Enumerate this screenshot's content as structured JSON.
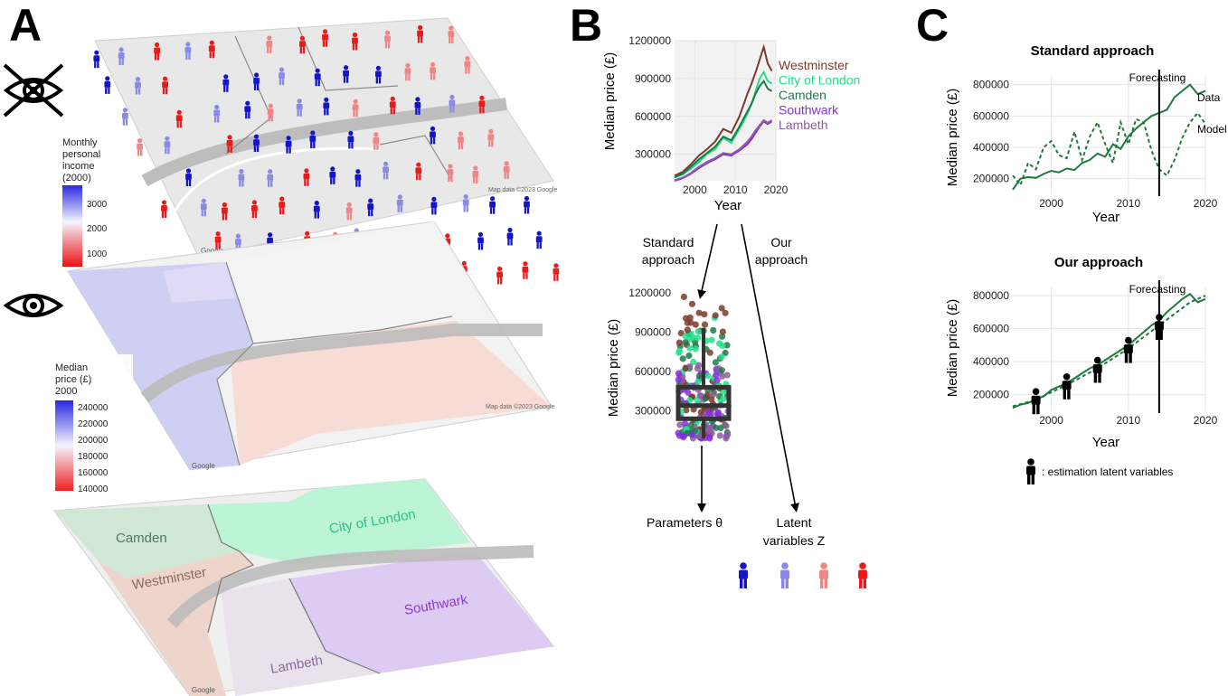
{
  "panels": {
    "a": "A",
    "b": "B",
    "c": "C"
  },
  "colors": {
    "westminster": "#7a3b2e",
    "city_of_london": "#22e08a",
    "camden": "#1f7a46",
    "southwark": "#8a2be2",
    "lambeth": "#8c5e9e",
    "low_income": "#e81a1a",
    "mid_low_income": "#f08585",
    "mid_high_income": "#8a8ae6",
    "high_income": "#1414c8",
    "model_green": "#1e7a3c"
  },
  "panel_a": {
    "legend1": {
      "title": [
        "Monthly",
        "personal",
        "income",
        "(2000)"
      ],
      "ticks": [
        "3000",
        "2000",
        "1000"
      ]
    },
    "legend2": {
      "title": [
        "Median",
        "price (£)",
        "2000"
      ],
      "ticks": [
        "240000",
        "220000",
        "200000",
        "180000",
        "160000",
        "140000"
      ]
    },
    "regions": [
      "Camden",
      "City of London",
      "Westminster",
      "Southwark",
      "Lambeth"
    ],
    "map_credit": "Map data ©2023 Google",
    "google_logo": "Google"
  },
  "panel_b": {
    "x_label": "Year",
    "y_label": "Median price (£)",
    "standard_label": [
      "Standard",
      "approach"
    ],
    "our_label": [
      "Our",
      "approach"
    ],
    "parameters_label": "Parameters θ",
    "latent_label": [
      "Latent",
      "variables Z"
    ]
  },
  "panel_c": {
    "standard_title": "Standard approach",
    "our_title": "Our approach",
    "forecasting_label": "Forecasting",
    "data_label": "Data",
    "model_label": "Model",
    "x_label": "Year",
    "y_label": "Median price (£)",
    "legend_text": ": estimation latent variables"
  },
  "chart_data": [
    {
      "id": "b-line",
      "type": "line",
      "title": "",
      "xlabel": "Year",
      "ylabel": "Median price (£)",
      "xlim": [
        1995,
        2020
      ],
      "ylim": [
        90000,
        1200000
      ],
      "xticks": [
        2000,
        2010,
        2020
      ],
      "yticks": [
        300000,
        600000,
        900000,
        1200000
      ],
      "x": [
        1995,
        1997,
        1999,
        2001,
        2003,
        2005,
        2007,
        2009,
        2011,
        2013,
        2014,
        2015,
        2016,
        2017,
        2018,
        2019
      ],
      "series": [
        {
          "name": "Westminster",
          "color": "#7a3b2e",
          "values": [
            130000,
            160000,
            220000,
            290000,
            340000,
            400000,
            500000,
            470000,
            600000,
            780000,
            860000,
            950000,
            1050000,
            1150000,
            1020000,
            960000
          ]
        },
        {
          "name": "City of London",
          "color": "#22e08a",
          "values": [
            115000,
            140000,
            185000,
            240000,
            300000,
            340000,
            430000,
            390000,
            500000,
            620000,
            700000,
            800000,
            900000,
            950000,
            880000,
            860000
          ]
        },
        {
          "name": "Camden",
          "color": "#1f7a46",
          "values": [
            120000,
            145000,
            200000,
            260000,
            310000,
            360000,
            440000,
            410000,
            520000,
            640000,
            700000,
            780000,
            840000,
            880000,
            820000,
            800000
          ]
        },
        {
          "name": "Southwark",
          "color": "#8a2be2",
          "values": [
            90000,
            110000,
            145000,
            190000,
            230000,
            260000,
            300000,
            290000,
            330000,
            380000,
            420000,
            470000,
            520000,
            560000,
            540000,
            560000
          ]
        },
        {
          "name": "Lambeth",
          "color": "#8c5e9e",
          "values": [
            95000,
            115000,
            150000,
            200000,
            240000,
            270000,
            310000,
            300000,
            340000,
            400000,
            440000,
            490000,
            530000,
            570000,
            550000,
            570000
          ]
        }
      ]
    },
    {
      "id": "b-box",
      "type": "scatter",
      "title": "",
      "xlabel": "",
      "ylabel": "Median price (£)",
      "ylim": [
        90000,
        1200000
      ],
      "yticks": [
        300000,
        600000,
        900000,
        1200000
      ],
      "box": {
        "q1": 240000,
        "median": 340000,
        "q3": 480000,
        "whisker_low": 90000,
        "whisker_high": 930000
      }
    },
    {
      "id": "c-standard",
      "type": "line",
      "title": "Standard approach",
      "xlabel": "Year",
      "ylabel": "Median price (£)",
      "xlim": [
        1995,
        2020
      ],
      "ylim": [
        100000,
        850000
      ],
      "xticks": [
        2000,
        2010,
        2020
      ],
      "yticks": [
        200000,
        400000,
        600000,
        800000
      ],
      "forecast_year": 2014,
      "series": [
        {
          "name": "Data",
          "style": "solid",
          "x": [
            1995,
            1996,
            1997,
            1998,
            1999,
            2000,
            2001,
            2002,
            2003,
            2004,
            2005,
            2006,
            2007,
            2008,
            2009,
            2010,
            2011,
            2012,
            2013,
            2014,
            2015,
            2016,
            2017,
            2018,
            2019,
            2020
          ],
          "values": [
            130000,
            200000,
            210000,
            205000,
            230000,
            250000,
            240000,
            265000,
            255000,
            300000,
            320000,
            360000,
            340000,
            420000,
            390000,
            470000,
            520000,
            560000,
            600000,
            620000,
            640000,
            720000,
            760000,
            800000,
            740000,
            760000
          ]
        },
        {
          "name": "Model",
          "style": "dashed",
          "x": [
            1995,
            1996,
            1997,
            1998,
            1999,
            2000,
            2001,
            2002,
            2003,
            2004,
            2005,
            2006,
            2007,
            2008,
            2009,
            2010,
            2011,
            2012,
            2013,
            2014,
            2015,
            2016,
            2017,
            2018,
            2019,
            2020
          ],
          "values": [
            220000,
            160000,
            300000,
            260000,
            400000,
            440000,
            350000,
            330000,
            500000,
            320000,
            470000,
            560000,
            420000,
            300000,
            560000,
            420000,
            580000,
            560000,
            380000,
            260000,
            220000,
            320000,
            460000,
            560000,
            620000,
            550000
          ]
        }
      ]
    },
    {
      "id": "c-our",
      "type": "line",
      "title": "Our approach",
      "xlabel": "Year",
      "ylabel": "Median price (£)",
      "xlim": [
        1995,
        2020
      ],
      "ylim": [
        100000,
        850000
      ],
      "xticks": [
        2000,
        2010,
        2020
      ],
      "yticks": [
        200000,
        400000,
        600000,
        800000
      ],
      "forecast_year": 2014,
      "latent_markers_years": [
        1998,
        2002,
        2006,
        2010,
        2014
      ],
      "series": [
        {
          "name": "Data",
          "style": "solid",
          "x": [
            1995,
            1996,
            1997,
            1998,
            1999,
            2000,
            2001,
            2002,
            2003,
            2004,
            2005,
            2006,
            2007,
            2008,
            2009,
            2010,
            2011,
            2012,
            2013,
            2014,
            2015,
            2016,
            2017,
            2018,
            2019,
            2020
          ],
          "values": [
            120000,
            140000,
            150000,
            175000,
            190000,
            230000,
            250000,
            270000,
            300000,
            330000,
            360000,
            380000,
            410000,
            440000,
            470000,
            500000,
            540000,
            580000,
            620000,
            650000,
            700000,
            740000,
            780000,
            810000,
            760000,
            780000
          ]
        },
        {
          "name": "Model",
          "style": "dashed",
          "x": [
            1995,
            1998,
            2002,
            2006,
            2010,
            2014,
            2018,
            2020
          ],
          "values": [
            130000,
            170000,
            260000,
            360000,
            480000,
            620000,
            760000,
            800000
          ]
        }
      ]
    }
  ]
}
